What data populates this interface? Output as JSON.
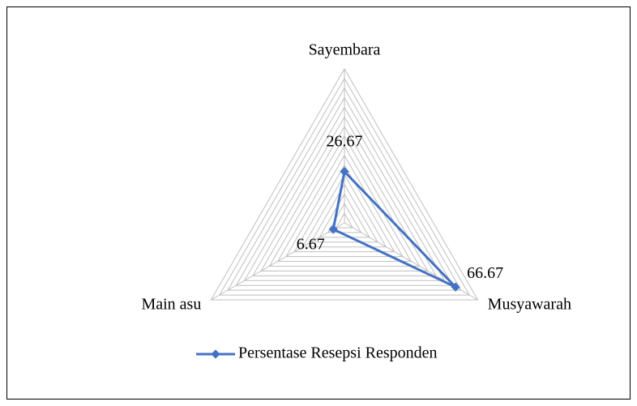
{
  "chart_data": {
    "type": "radar",
    "categories": [
      "Sayembara",
      "Musyawarah",
      "Main asu"
    ],
    "series": [
      {
        "name": "Persentase Resepsi Responden",
        "color": "#4472c4",
        "values": [
          26.67,
          66.67,
          6.67
        ]
      }
    ],
    "ylim": [
      0,
      80
    ],
    "yticks": [
      0,
      5,
      10,
      15,
      20,
      25,
      30,
      35,
      40,
      45,
      50,
      55,
      60,
      65,
      70,
      75,
      80
    ],
    "grid": true,
    "legend": "bottom"
  }
}
